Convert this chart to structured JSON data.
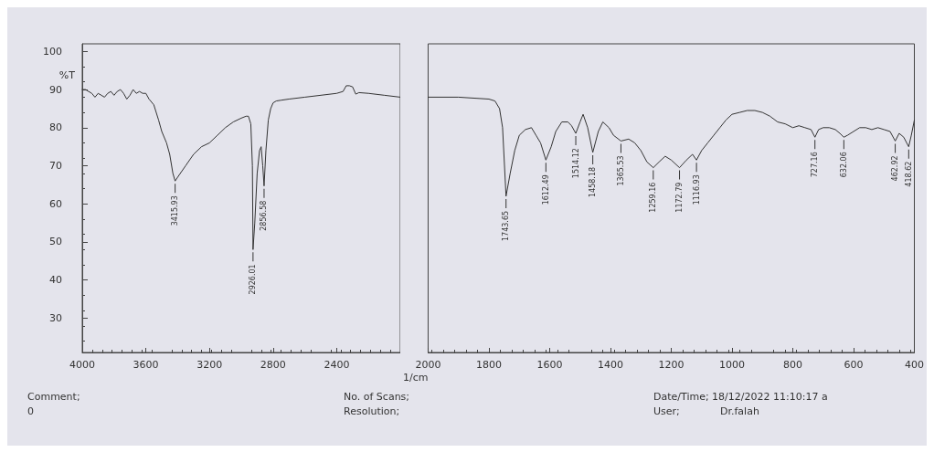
{
  "chart_data": [
    {
      "type": "line",
      "ylabel": "%T",
      "xlim": [
        4000,
        2000
      ],
      "ylim": [
        21,
        102
      ],
      "xticks": [
        4000,
        3600,
        3200,
        2800,
        2400
      ],
      "yticks": [
        30,
        40,
        50,
        60,
        70,
        80,
        90,
        100
      ],
      "grid": false,
      "marker": "none",
      "line_style": "solid",
      "series": [
        {
          "color": "#333333",
          "x": [
            4000,
            3980,
            3960,
            3940,
            3920,
            3900,
            3880,
            3860,
            3840,
            3820,
            3800,
            3780,
            3760,
            3740,
            3720,
            3700,
            3680,
            3660,
            3640,
            3620,
            3600,
            3580,
            3550,
            3520,
            3500,
            3470,
            3450,
            3430,
            3415.93,
            3400,
            3350,
            3300,
            3250,
            3200,
            3150,
            3100,
            3050,
            3000,
            2970,
            2955,
            2940,
            2930,
            2926.01,
            2915,
            2900,
            2885,
            2875,
            2865,
            2856.58,
            2845,
            2830,
            2815,
            2800,
            2780,
            2750,
            2700,
            2600,
            2500,
            2400,
            2360,
            2340,
            2320,
            2300,
            2280,
            2260,
            2200,
            2100,
            2000
          ],
          "values": [
            90,
            90,
            89.5,
            89,
            88,
            89,
            88.5,
            88,
            89,
            89.5,
            88.5,
            89.5,
            90,
            89,
            87.5,
            88.5,
            90,
            89,
            89.5,
            89,
            89,
            87.5,
            86,
            82,
            79,
            76,
            73,
            68,
            66,
            67,
            70,
            73,
            75,
            76,
            78,
            80,
            81.5,
            82.5,
            83,
            83,
            81,
            70,
            48,
            55,
            68,
            74,
            75,
            70,
            64.7,
            74,
            82,
            85,
            86.5,
            87,
            87.2,
            87.5,
            88,
            88.5,
            89,
            89.5,
            91,
            91,
            90.7,
            88.8,
            89.2,
            89,
            88.5,
            88
          ]
        }
      ],
      "annotations": [
        {
          "text": "3415.93",
          "x": 3415.93,
          "y": 66
        },
        {
          "text": "2926.01",
          "x": 2926.01,
          "y": 48
        },
        {
          "text": "2856.58",
          "x": 2856.58,
          "y": 64.7
        },
        "Comment;",
        "0"
      ]
    },
    {
      "type": "line",
      "xlabel": "1/cm",
      "xlim": [
        2000,
        400
      ],
      "ylim": [
        21,
        102
      ],
      "xticks": [
        2000,
        1800,
        1600,
        1400,
        1200,
        1000,
        800,
        600,
        400
      ],
      "tick_labels": "x",
      "grid": false,
      "marker": "none",
      "line_style": "solid",
      "series": [
        {
          "color": "#333333",
          "x": [
            2000,
            1900,
            1800,
            1780,
            1765,
            1755,
            1743.65,
            1730,
            1715,
            1700,
            1680,
            1660,
            1645,
            1630,
            1612.49,
            1595,
            1580,
            1560,
            1540,
            1528,
            1514.12,
            1500,
            1490,
            1475,
            1458.18,
            1440,
            1425,
            1405,
            1390,
            1365.53,
            1340,
            1320,
            1300,
            1280,
            1259.16,
            1240,
            1220,
            1200,
            1172.79,
            1150,
            1130,
            1116.93,
            1100,
            1080,
            1060,
            1040,
            1020,
            1000,
            975,
            950,
            925,
            900,
            875,
            850,
            825,
            800,
            780,
            760,
            740,
            727.16,
            715,
            700,
            680,
            660,
            645,
            632.06,
            620,
            600,
            580,
            560,
            540,
            520,
            500,
            480,
            462.92,
            450,
            435,
            418.62,
            410,
            400
          ],
          "values": [
            88,
            88,
            87.5,
            87,
            85,
            80,
            62,
            68,
            74,
            78,
            79.5,
            80,
            78,
            76,
            71.5,
            75,
            79,
            81.5,
            81.5,
            80.5,
            78.5,
            81.5,
            83.5,
            80,
            73.5,
            79,
            81.5,
            80,
            78,
            76.5,
            77,
            76,
            74,
            71,
            69.5,
            71,
            72.5,
            71.5,
            69.5,
            71.5,
            73,
            71.5,
            74,
            76,
            78,
            80,
            82,
            83.5,
            84,
            84.5,
            84.5,
            84,
            83,
            81.5,
            81,
            80,
            80.5,
            80,
            79.5,
            77.5,
            79.5,
            80,
            80,
            79.5,
            78.5,
            77.5,
            78,
            79,
            80,
            80,
            79.5,
            80,
            79.5,
            79,
            76.5,
            78.5,
            77.5,
            75,
            78,
            82
          ]
        }
      ],
      "annotations": [
        {
          "text": "1743.65",
          "x": 1743.65,
          "y": 62
        },
        {
          "text": "1612.49",
          "x": 1612.49,
          "y": 71.5
        },
        {
          "text": "1514.12",
          "x": 1514.12,
          "y": 78.5
        },
        {
          "text": "1458.18",
          "x": 1458.18,
          "y": 73.5
        },
        {
          "text": "1365.53",
          "x": 1365.53,
          "y": 76.5
        },
        {
          "text": "1259.16",
          "x": 1259.16,
          "y": 69.5
        },
        {
          "text": "1172.79",
          "x": 1172.79,
          "y": 69.5
        },
        {
          "text": "1116.93",
          "x": 1116.93,
          "y": 71.5
        },
        {
          "text": "727.16",
          "x": 727.16,
          "y": 77.5
        },
        {
          "text": "632.06",
          "x": 632.06,
          "y": 77.5
        },
        {
          "text": "462.92",
          "x": 462.92,
          "y": 76.5
        },
        {
          "text": "418.62",
          "x": 418.62,
          "y": 75
        },
        "No. of Scans;",
        "Resolution;",
        "Date/Time; 18/12/2022 11:10:17 a",
        "User;",
        "Dr.falah"
      ]
    }
  ]
}
